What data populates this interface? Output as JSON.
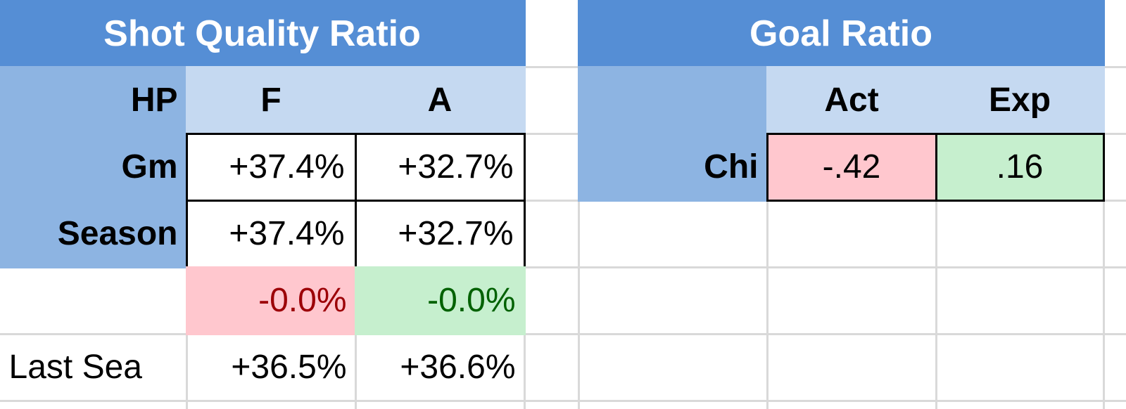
{
  "left_table": {
    "title": "Shot Quality Ratio",
    "header": [
      "HP",
      "F",
      "A"
    ],
    "rows": [
      [
        "Gm",
        "+37.4%",
        "+32.7%"
      ],
      [
        "Season",
        "+37.4%",
        "+32.7%"
      ]
    ],
    "difference": [
      "-0.0%",
      "-0.0%"
    ],
    "last_season": [
      "Last Sea",
      "+36.5%",
      "+36.6%"
    ]
  },
  "right_table": {
    "title": "Goal Ratio",
    "header": [
      "Act",
      "Exp"
    ],
    "rows": [
      [
        "Chi",
        "-.42",
        ".16"
      ]
    ]
  }
}
